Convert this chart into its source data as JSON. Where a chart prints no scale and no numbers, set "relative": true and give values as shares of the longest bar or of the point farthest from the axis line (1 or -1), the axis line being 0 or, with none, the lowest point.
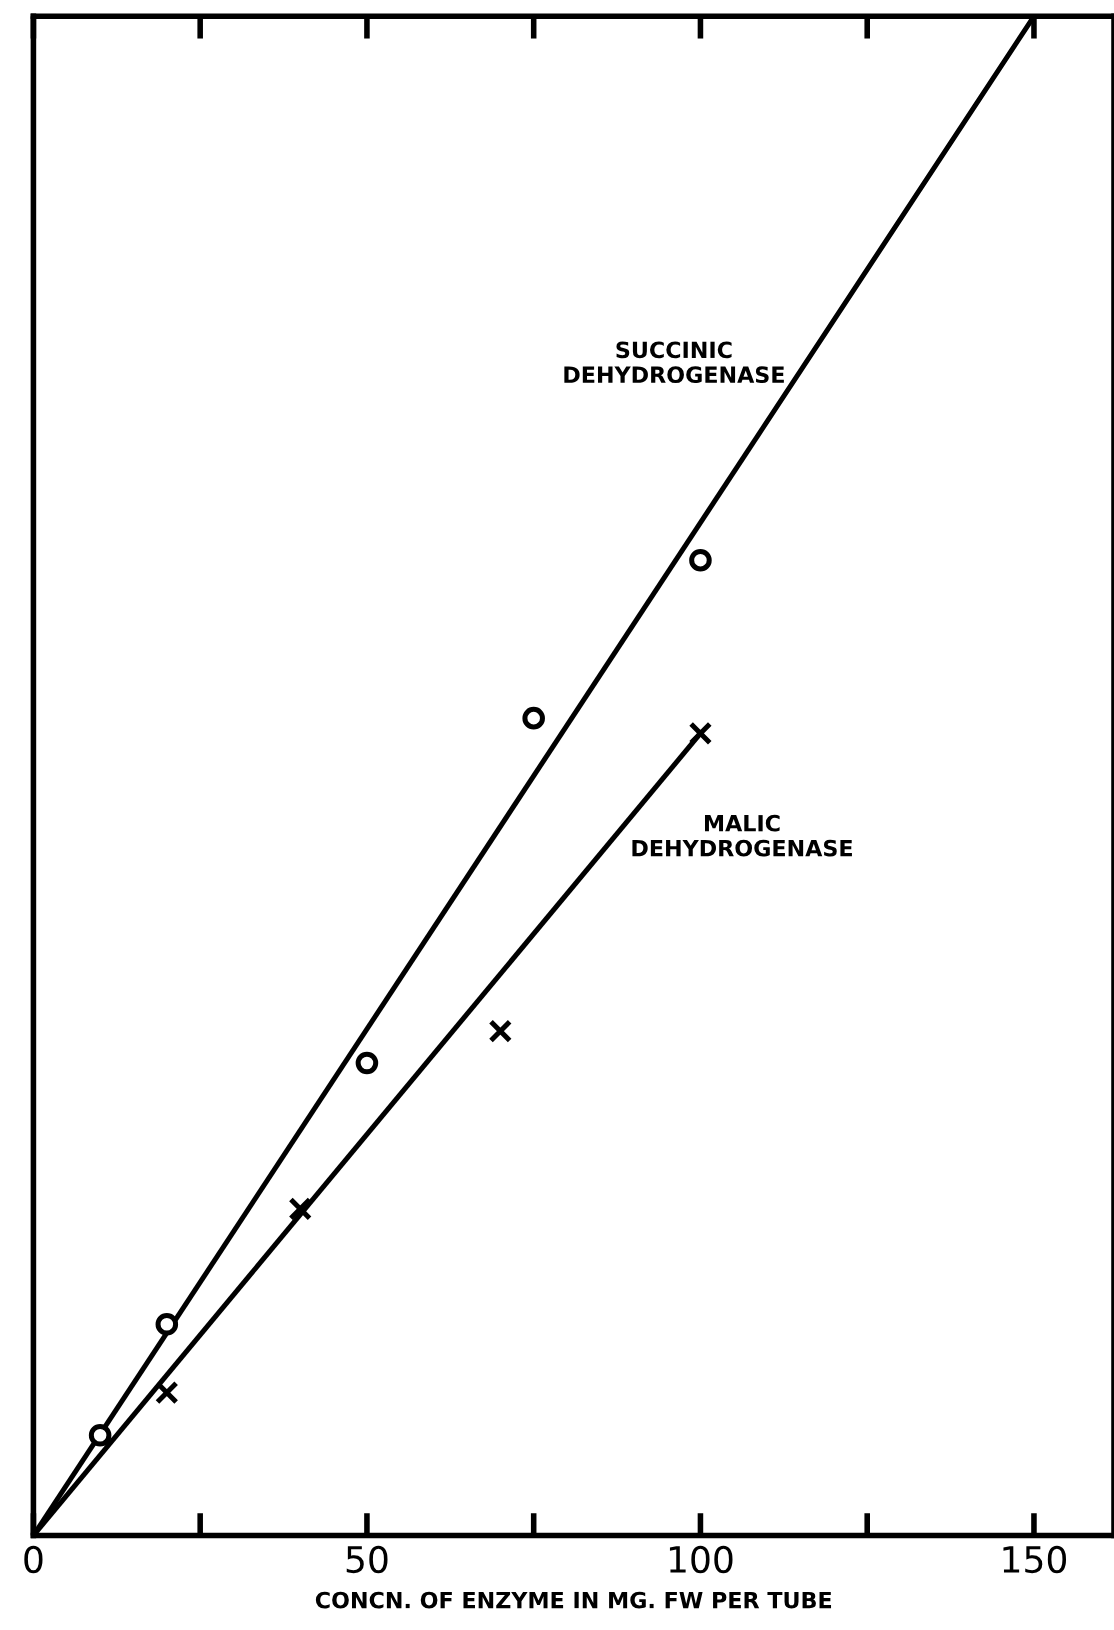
{
  "chart_data": {
    "type": "scatter",
    "relative": true,
    "xlabel": "CONCN. OF ENZYME IN MG. FW PER TUBE",
    "xlim": [
      0,
      162
    ],
    "xticks": [
      0,
      {
        "value": 25,
        "label": null
      },
      50,
      {
        "value": 75,
        "label": null
      },
      100,
      {
        "value": 125,
        "label": null
      },
      150
    ],
    "tick_labels": "x",
    "grid": false,
    "legend": false,
    "series": [
      {
        "marker": "circle",
        "color": "#000000",
        "x": [
          10,
          20,
          50,
          75,
          100
        ],
        "values": [
          0.066,
          0.139,
          0.311,
          0.538,
          0.642
        ]
      },
      {
        "marker": "cross",
        "color": "#000000",
        "x": [
          20,
          40,
          70,
          100
        ],
        "values": [
          0.094,
          0.215,
          0.332,
          0.528
        ]
      },
      {
        "type": "line",
        "name": "SUCCINIC\nDEHYDROGENASE",
        "color": "#000000",
        "x": [
          0,
          150
        ],
        "values": [
          0,
          1
        ]
      },
      {
        "type": "line",
        "name": "MALIC\nDEHYDROGENASE",
        "color": "#000000",
        "x": [
          0,
          100
        ],
        "values": [
          0,
          0.528
        ]
      }
    ]
  }
}
